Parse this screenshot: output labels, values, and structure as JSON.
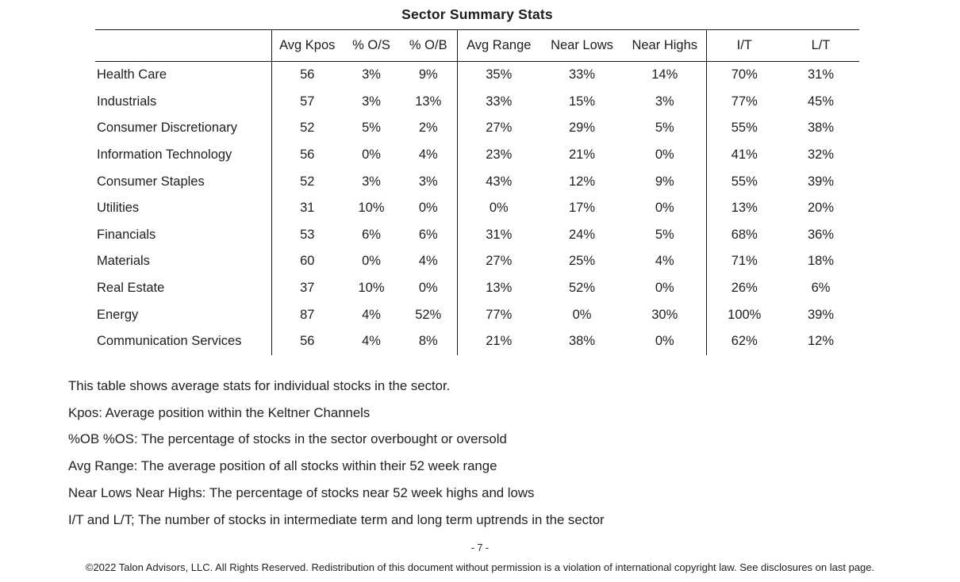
{
  "title": "Sector Summary Stats",
  "table": {
    "columns": [
      "",
      "Avg Kpos",
      "% O/S",
      "% O/B",
      "Avg Range",
      "Near Lows",
      "Near Highs",
      "I/T",
      "L/T"
    ],
    "rows": [
      {
        "sector": "Health Care",
        "values": [
          "56",
          "3%",
          "9%",
          "35%",
          "33%",
          "14%",
          "70%",
          "31%"
        ]
      },
      {
        "sector": "Industrials",
        "values": [
          "57",
          "3%",
          "13%",
          "33%",
          "15%",
          "3%",
          "77%",
          "45%"
        ]
      },
      {
        "sector": "Consumer Discretionary",
        "values": [
          "52",
          "5%",
          "2%",
          "27%",
          "29%",
          "5%",
          "55%",
          "38%"
        ]
      },
      {
        "sector": "Information Technology",
        "values": [
          "56",
          "0%",
          "4%",
          "23%",
          "21%",
          "0%",
          "41%",
          "32%"
        ]
      },
      {
        "sector": "Consumer Staples",
        "values": [
          "52",
          "3%",
          "3%",
          "43%",
          "12%",
          "9%",
          "55%",
          "39%"
        ]
      },
      {
        "sector": "Utilities",
        "values": [
          "31",
          "10%",
          "0%",
          "0%",
          "17%",
          "0%",
          "13%",
          "20%"
        ]
      },
      {
        "sector": "Financials",
        "values": [
          "53",
          "6%",
          "6%",
          "31%",
          "24%",
          "5%",
          "68%",
          "36%"
        ]
      },
      {
        "sector": "Materials",
        "values": [
          "60",
          "0%",
          "4%",
          "27%",
          "25%",
          "4%",
          "71%",
          "18%"
        ]
      },
      {
        "sector": "Real Estate",
        "values": [
          "37",
          "10%",
          "0%",
          "13%",
          "52%",
          "0%",
          "26%",
          "6%"
        ]
      },
      {
        "sector": "Energy",
        "values": [
          "87",
          "4%",
          "52%",
          "77%",
          "0%",
          "30%",
          "100%",
          "39%"
        ]
      },
      {
        "sector": "Communication Services",
        "values": [
          "56",
          "4%",
          "8%",
          "21%",
          "38%",
          "0%",
          "62%",
          "12%"
        ]
      }
    ]
  },
  "notes": [
    "This table shows average stats for individual stocks in the sector.",
    "Kpos: Average position within the Keltner Channels",
    "%OB %OS: The percentage of stocks in the sector overbought or oversold",
    "Avg Range: The average position of all stocks within their 52 week range",
    "Near Lows Near Highs: The percentage of stocks near 52 week highs and lows",
    "I/T and L/T; The number of stocks in intermediate term and long term uptrends in the sector"
  ],
  "footer": {
    "page_number": "- 7 -",
    "copyright": "©2022 Talon Advisors, LLC. All Rights Reserved. Redistribution of this document without permission is a violation of international copyright law. See disclosures on last page."
  }
}
